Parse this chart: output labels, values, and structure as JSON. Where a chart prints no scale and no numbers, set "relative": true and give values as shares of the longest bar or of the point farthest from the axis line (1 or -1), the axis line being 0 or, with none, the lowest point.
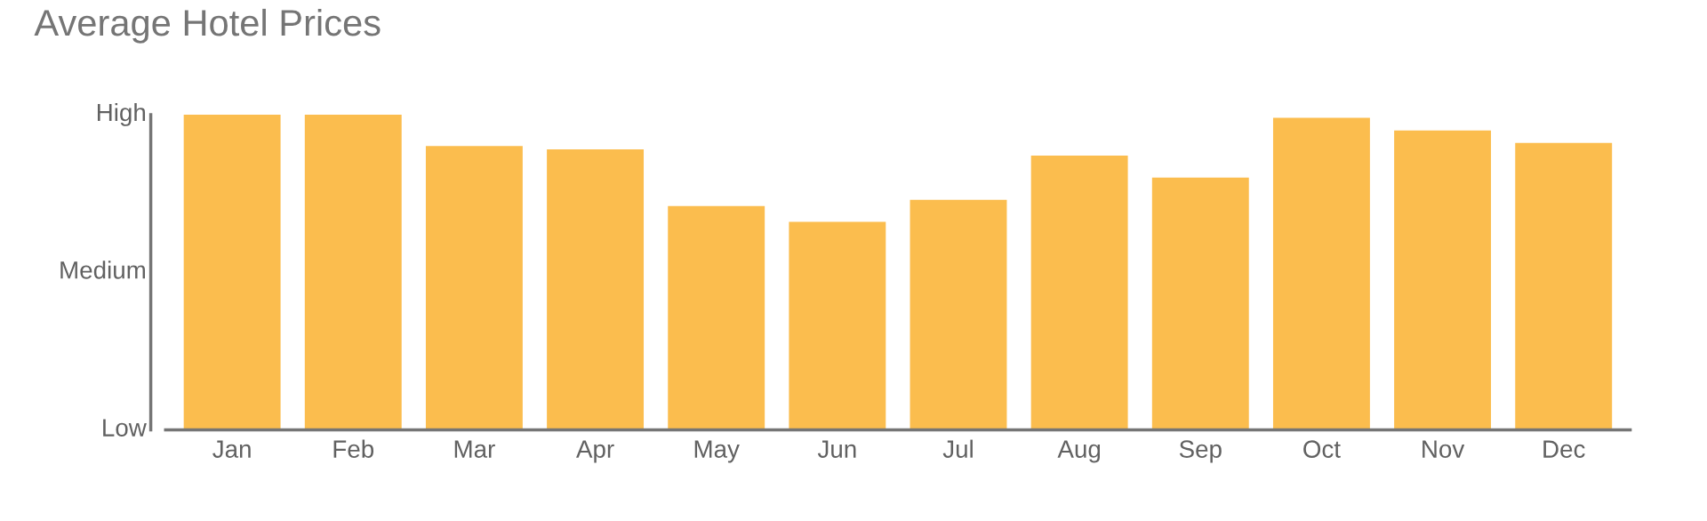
{
  "chart_data": {
    "type": "bar",
    "title": "Average Hotel Prices",
    "categories": [
      "Jan",
      "Feb",
      "Mar",
      "Apr",
      "May",
      "Jun",
      "Jul",
      "Aug",
      "Sep",
      "Oct",
      "Nov",
      "Dec"
    ],
    "values": [
      1.0,
      1.0,
      0.9,
      0.89,
      0.71,
      0.66,
      0.73,
      0.87,
      0.8,
      0.99,
      0.95,
      0.91
    ],
    "color": "#fbbd4e",
    "relative": true,
    "annotations": [
      "Low",
      "Medium",
      "High"
    ],
    "grid": false,
    "legend": false
  }
}
